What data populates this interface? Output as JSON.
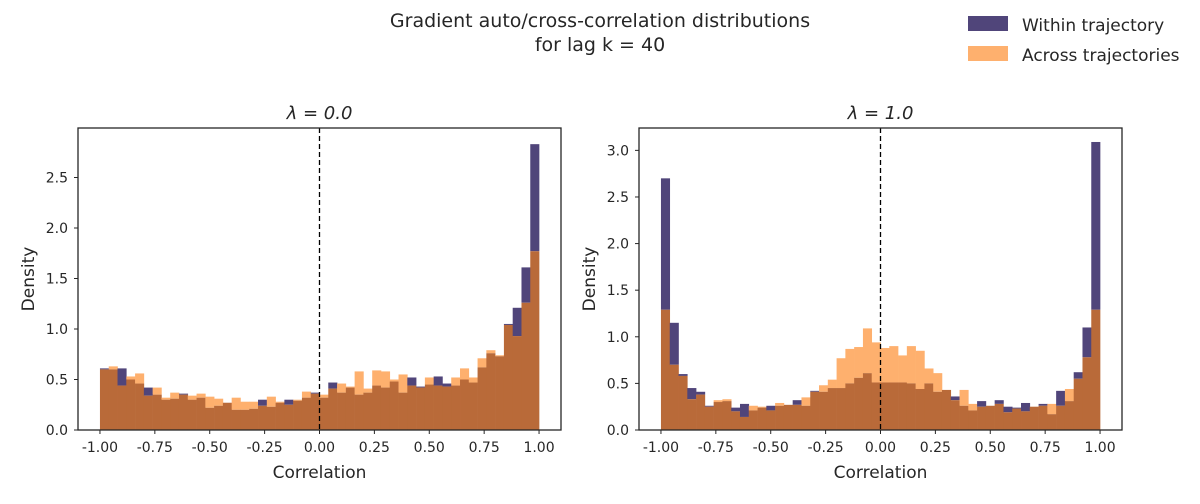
{
  "suptitle_line1": "Gradient auto/cross-correlation distributions",
  "suptitle_line2": "for lag k = 40",
  "legend": {
    "placement": "top-right",
    "items": [
      {
        "label": "Within trajectory",
        "color": "#50457a"
      },
      {
        "label": "Across trajectories",
        "color": "#feb06e"
      }
    ]
  },
  "overlap_color": "#b96a39",
  "chart_data": [
    {
      "type": "histogram",
      "title": "λ = 0.0",
      "xlabel": "Correlation",
      "ylabel": "Density",
      "xlim": [
        -1.1,
        1.1
      ],
      "ylim": [
        0,
        2.99
      ],
      "xticks": [
        "-1.00",
        "-0.75",
        "-0.50",
        "-0.25",
        "0.00",
        "0.25",
        "0.50",
        "0.75",
        "1.00"
      ],
      "yticks": [
        "0.0",
        "0.5",
        "1.0",
        "1.5",
        "2.0",
        "2.5"
      ],
      "vline_x": 0,
      "bin_range": [
        -1,
        1
      ],
      "grid": false,
      "series": [
        {
          "name": "Within trajectory",
          "values": [
            0.61,
            0.6,
            0.61,
            0.5,
            0.46,
            0.42,
            0.35,
            0.3,
            0.31,
            0.36,
            0.3,
            0.32,
            0.22,
            0.24,
            0.27,
            0.2,
            0.2,
            0.21,
            0.3,
            0.23,
            0.27,
            0.3,
            0.29,
            0.32,
            0.37,
            0.32,
            0.47,
            0.37,
            0.42,
            0.35,
            0.37,
            0.44,
            0.42,
            0.48,
            0.37,
            0.52,
            0.43,
            0.45,
            0.53,
            0.46,
            0.44,
            0.5,
            0.47,
            0.62,
            0.76,
            0.73,
            1.05,
            1.21,
            1.61,
            2.83
          ]
        },
        {
          "name": "Across trajectories",
          "values": [
            0.6,
            0.63,
            0.44,
            0.53,
            0.56,
            0.34,
            0.42,
            0.32,
            0.37,
            0.35,
            0.34,
            0.36,
            0.33,
            0.31,
            0.27,
            0.32,
            0.28,
            0.28,
            0.24,
            0.33,
            0.28,
            0.25,
            0.3,
            0.38,
            0.36,
            0.35,
            0.41,
            0.46,
            0.43,
            0.58,
            0.41,
            0.59,
            0.58,
            0.5,
            0.55,
            0.44,
            0.42,
            0.52,
            0.44,
            0.43,
            0.52,
            0.61,
            0.52,
            0.71,
            0.79,
            0.74,
            1.04,
            0.93,
            1.26,
            1.77
          ]
        }
      ]
    },
    {
      "type": "histogram",
      "title": "λ = 1.0",
      "xlabel": "Correlation",
      "ylabel": "Density",
      "xlim": [
        -1.1,
        1.1
      ],
      "ylim": [
        0,
        3.24
      ],
      "xticks": [
        "-1.00",
        "-0.75",
        "-0.50",
        "-0.25",
        "0.00",
        "0.25",
        "0.50",
        "0.75",
        "1.00"
      ],
      "yticks": [
        "0.0",
        "0.5",
        "1.0",
        "1.5",
        "2.0",
        "2.5",
        "3.0"
      ],
      "vline_x": 0,
      "bin_range": [
        -1,
        1
      ],
      "grid": false,
      "series": [
        {
          "name": "Within trajectory",
          "values": [
            2.7,
            1.15,
            0.6,
            0.45,
            0.41,
            0.26,
            0.3,
            0.31,
            0.24,
            0.28,
            0.21,
            0.24,
            0.26,
            0.26,
            0.27,
            0.32,
            0.26,
            0.42,
            0.41,
            0.45,
            0.45,
            0.5,
            0.56,
            0.61,
            0.51,
            0.51,
            0.51,
            0.51,
            0.5,
            0.44,
            0.5,
            0.41,
            0.43,
            0.36,
            0.26,
            0.21,
            0.31,
            0.26,
            0.32,
            0.25,
            0.24,
            0.29,
            0.25,
            0.28,
            0.17,
            0.42,
            0.31,
            0.62,
            1.1,
            3.09
          ]
        },
        {
          "name": "Across trajectories",
          "values": [
            1.29,
            0.7,
            0.58,
            0.33,
            0.38,
            0.25,
            0.32,
            0.33,
            0.2,
            0.14,
            0.26,
            0.25,
            0.21,
            0.29,
            0.27,
            0.27,
            0.35,
            0.41,
            0.48,
            0.54,
            0.77,
            0.87,
            0.89,
            1.09,
            0.94,
            0.88,
            0.9,
            0.8,
            0.9,
            0.85,
            0.66,
            0.61,
            0.43,
            0.32,
            0.43,
            0.28,
            0.25,
            0.26,
            0.28,
            0.19,
            0.23,
            0.2,
            0.25,
            0.26,
            0.28,
            0.26,
            0.44,
            0.55,
            0.78,
            1.29
          ]
        }
      ]
    }
  ]
}
